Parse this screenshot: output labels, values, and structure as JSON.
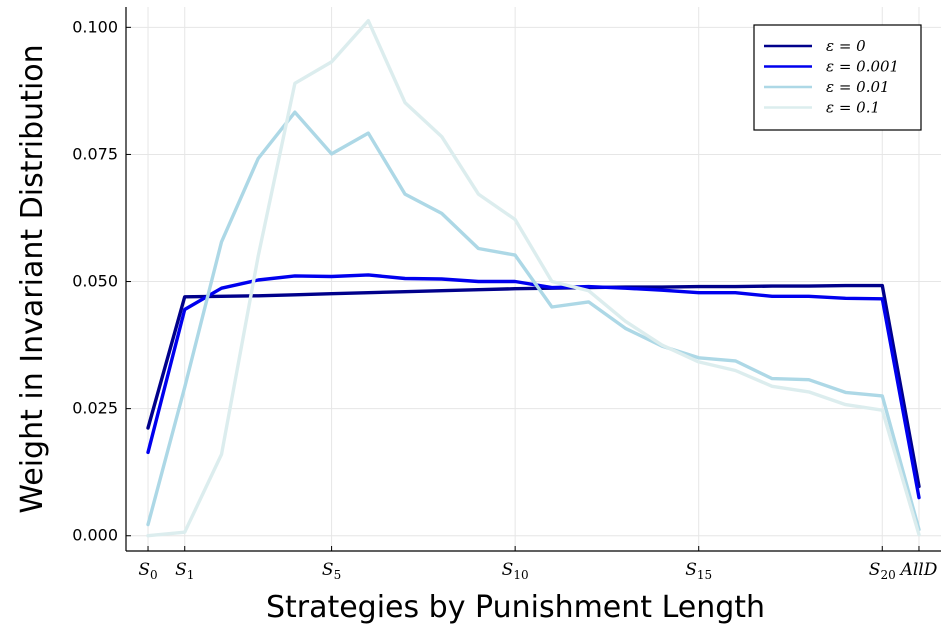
{
  "chart_data": {
    "type": "line",
    "title": "",
    "xlabel": "Strategies by Punishment Length",
    "ylabel": "Weight in Invariant Distribution",
    "x": [
      0,
      1,
      2,
      3,
      4,
      5,
      6,
      7,
      8,
      9,
      10,
      11,
      12,
      13,
      14,
      15,
      16,
      17,
      18,
      19,
      20,
      21
    ],
    "x_ticks": [
      {
        "x": 0,
        "base": "S",
        "sub": "0"
      },
      {
        "x": 1,
        "base": "S",
        "sub": "1"
      },
      {
        "x": 5,
        "base": "S",
        "sub": "5"
      },
      {
        "x": 10,
        "base": "S",
        "sub": "10"
      },
      {
        "x": 15,
        "base": "S",
        "sub": "15"
      },
      {
        "x": 20,
        "base": "S",
        "sub": "20"
      },
      {
        "x": 21,
        "base": "AllD",
        "sub": ""
      }
    ],
    "y_ticks": [
      0,
      0.025,
      0.05,
      0.075,
      0.1
    ],
    "y_tick_labels": [
      "0.000",
      "0.025",
      "0.050",
      "0.075",
      "0.100"
    ],
    "ylim": [
      -0.003,
      0.104
    ],
    "xlim": [
      -0.6,
      21.6
    ],
    "grid": true,
    "legend_position": "top-right",
    "series": [
      {
        "name": "ε = 0",
        "color": "#00008b",
        "values": [
          0.0212,
          0.047,
          0.0471,
          0.0472,
          0.0474,
          0.0476,
          0.0478,
          0.048,
          0.0482,
          0.0484,
          0.0486,
          0.0487,
          0.0488,
          0.0489,
          0.0489,
          0.049,
          0.049,
          0.0491,
          0.0491,
          0.0492,
          0.0492,
          0.0097
        ]
      },
      {
        "name": "ε = 0.001",
        "color": "#0000ee",
        "values": [
          0.0164,
          0.0445,
          0.0487,
          0.0503,
          0.0511,
          0.051,
          0.0513,
          0.0506,
          0.0505,
          0.05,
          0.05,
          0.0488,
          0.049,
          0.0487,
          0.0483,
          0.0478,
          0.0478,
          0.0471,
          0.0471,
          0.0467,
          0.0466,
          0.0075
        ]
      },
      {
        "name": "ε = 0.01",
        "color": "#add8e6",
        "values": [
          0.0022,
          0.0292,
          0.0578,
          0.0742,
          0.0833,
          0.0751,
          0.0792,
          0.0672,
          0.0634,
          0.0565,
          0.0552,
          0.045,
          0.046,
          0.0408,
          0.0373,
          0.035,
          0.0344,
          0.0309,
          0.0307,
          0.0282,
          0.0275,
          0.0012
        ]
      },
      {
        "name": "ε = 0.1",
        "color": "#dcedee",
        "values": [
          0.0,
          0.0007,
          0.016,
          0.055,
          0.089,
          0.0932,
          0.1013,
          0.0852,
          0.0785,
          0.0672,
          0.0622,
          0.05,
          0.0482,
          0.0422,
          0.0375,
          0.0342,
          0.0325,
          0.0294,
          0.0283,
          0.0258,
          0.0247,
          0.0002
        ]
      }
    ]
  }
}
